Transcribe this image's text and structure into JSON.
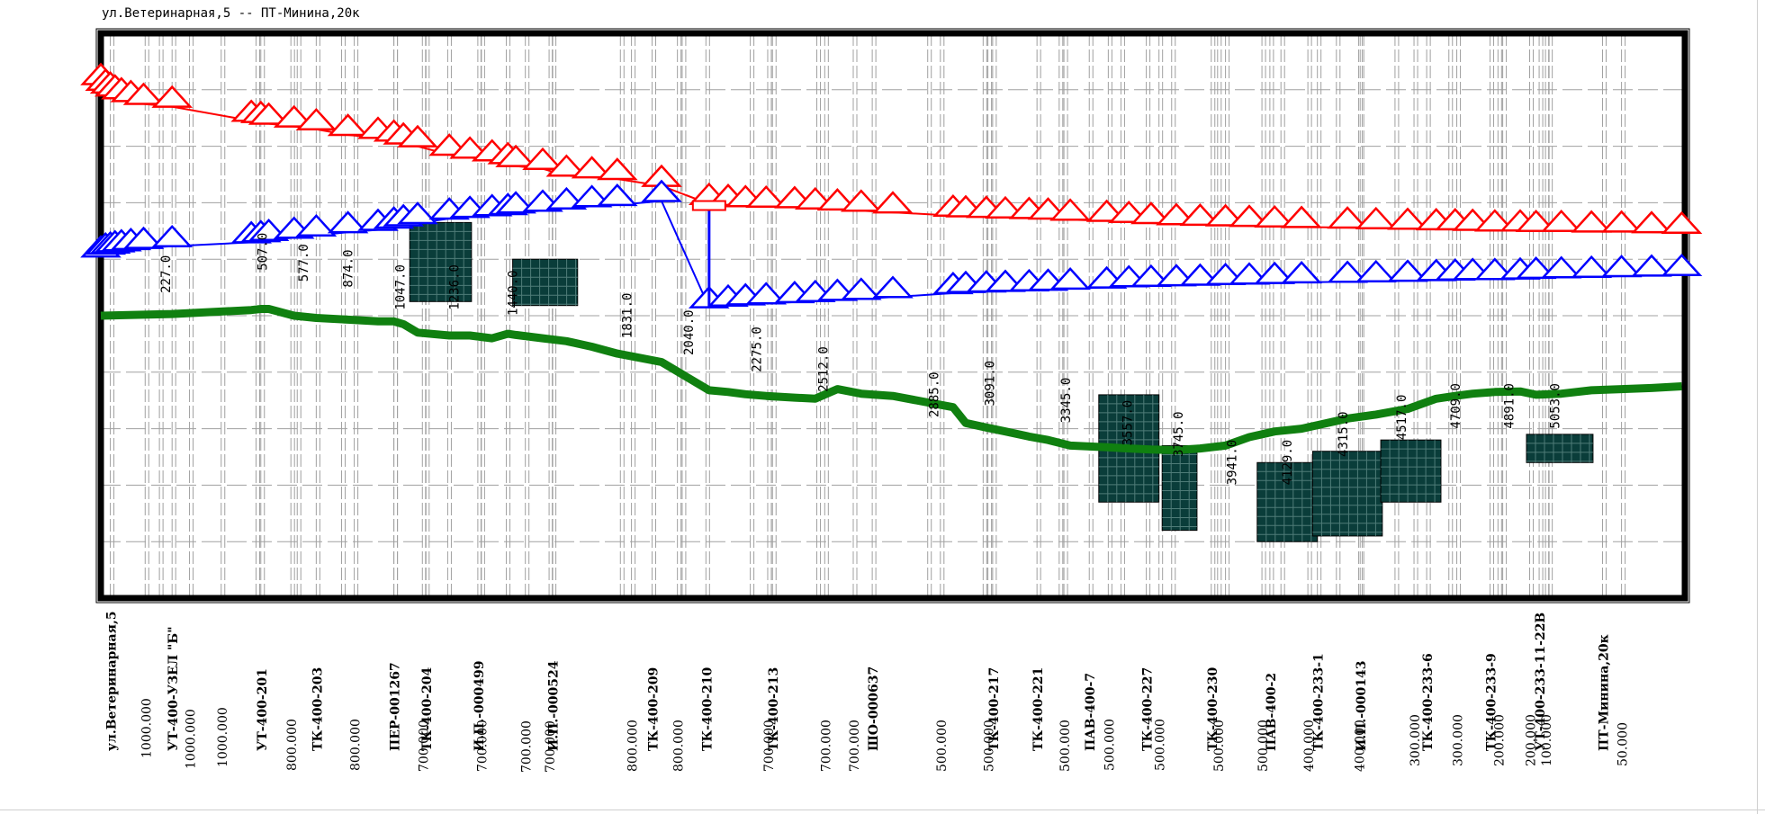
{
  "title": "ул.Ветеринарная,5 -- ПТ-Минина,20к",
  "colors": {
    "supply": "#ff0000",
    "return": "#0000ff",
    "ground": "#108010",
    "chamber": "#0a3d3a",
    "frame": "#000000",
    "grid": "#a0a0a0"
  },
  "chart_data": {
    "type": "line",
    "title": "ул.Ветеринарная,5 -- ПТ-Минина,20к",
    "xlabel": "",
    "ylabel": "",
    "xlim": [
      0,
      1000
    ],
    "ylim": [
      0,
      100
    ],
    "grid": true,
    "series": [
      {
        "name": "",
        "role": "supply",
        "color": "#ff0000",
        "x": [
          0,
          3,
          6,
          9,
          13,
          19,
          27,
          45,
          95,
          101,
          106,
          122,
          136,
          156,
          175,
          185,
          191,
          200,
          220,
          233,
          247,
          257,
          262,
          279,
          294,
          310,
          326,
          354,
          384,
          396,
          407,
          420,
          438,
          451,
          465,
          480,
          500,
          538,
          546,
          559,
          571,
          586,
          598,
          612,
          635,
          649,
          663,
          679,
          694,
          710,
          725,
          741,
          758,
          787,
          805,
          825,
          843,
          855,
          866,
          880,
          896,
          906,
          922,
          941,
          960,
          979,
          998
        ],
        "y": [
          91,
          90,
          89.5,
          89,
          88.5,
          88,
          87.5,
          87,
          84.5,
          84.3,
          84,
          83.5,
          83,
          82,
          81.5,
          81,
          80.5,
          80,
          78.5,
          78,
          77.5,
          77,
          76.5,
          76,
          74.8,
          74.5,
          74.2,
          73,
          69.8,
          69.6,
          69.4,
          69.3,
          69.2,
          69,
          68.8,
          68.6,
          68.3,
          67.7,
          67.6,
          67.5,
          67.4,
          67.3,
          67.2,
          67,
          66.8,
          66.6,
          66.4,
          66.2,
          66.1,
          66,
          65.9,
          65.8,
          65.7,
          65.6,
          65.5,
          65.4,
          65.3,
          65.3,
          65.2,
          65.1,
          65.1,
          65,
          65,
          64.9,
          64.9,
          64.8,
          64.7
        ]
      },
      {
        "name": "",
        "role": "return",
        "color": "#0000ff",
        "x": [
          0,
          3,
          6,
          9,
          13,
          19,
          27,
          45,
          95,
          101,
          106,
          122,
          136,
          156,
          175,
          185,
          191,
          200,
          220,
          233,
          247,
          257,
          262,
          279,
          294,
          310,
          326,
          354,
          384,
          396,
          407,
          420,
          438,
          451,
          465,
          480,
          500,
          538,
          546,
          559,
          571,
          586,
          598,
          612,
          635,
          649,
          663,
          679,
          694,
          710,
          725,
          741,
          758,
          787,
          805,
          825,
          843,
          855,
          866,
          880,
          896,
          906,
          922,
          941,
          960,
          979,
          998
        ],
        "y": [
          60.5,
          61,
          61.2,
          61.4,
          61.6,
          61.8,
          62,
          62.3,
          63,
          63.2,
          63.4,
          63.8,
          64.2,
          64.8,
          65.2,
          65.6,
          66,
          66.4,
          67.2,
          67.5,
          67.8,
          68,
          68.3,
          68.6,
          69,
          69.4,
          69.6,
          70.3,
          51.5,
          51.8,
          52,
          52.2,
          52.4,
          52.6,
          52.8,
          53,
          53.3,
          54,
          54.2,
          54.3,
          54.4,
          54.5,
          54.6,
          54.8,
          55,
          55.2,
          55.3,
          55.4,
          55.5,
          55.6,
          55.7,
          55.8,
          55.9,
          56,
          56.1,
          56.2,
          56.3,
          56.4,
          56.5,
          56.5,
          56.6,
          56.7,
          56.8,
          56.9,
          57,
          57.1,
          57.2
        ]
      },
      {
        "name": "",
        "role": "ground",
        "color": "#108010",
        "x": [
          0,
          45,
          95,
          101,
          106,
          122,
          136,
          156,
          175,
          185,
          191,
          200,
          220,
          233,
          247,
          257,
          262,
          279,
          294,
          310,
          326,
          354,
          384,
          396,
          407,
          420,
          438,
          451,
          465,
          480,
          500,
          538,
          546,
          559,
          571,
          586,
          598,
          612,
          635,
          649,
          663,
          679,
          694,
          710,
          725,
          741,
          758,
          787,
          805,
          825,
          843,
          855,
          866,
          880,
          896,
          906,
          922,
          941,
          960,
          979,
          998
        ],
        "y": [
          50,
          50.3,
          51,
          51.2,
          51.2,
          50,
          49.6,
          49.3,
          49,
          49,
          48.5,
          47,
          46.5,
          46.5,
          46,
          46.8,
          46.6,
          46,
          45.5,
          44.5,
          43.3,
          41.8,
          36.8,
          36.5,
          36.1,
          35.8,
          35.5,
          35.3,
          37,
          36.2,
          35.8,
          33.8,
          31,
          30.2,
          29.5,
          28.6,
          28,
          27,
          26.7,
          26.5,
          26.3,
          26.2,
          26.5,
          27,
          28.5,
          29.5,
          30,
          31.8,
          32.5,
          33.5,
          35.3,
          35.8,
          36.2,
          36.5,
          36.6,
          36,
          36.2,
          36.8,
          37,
          37.2,
          37.5
        ]
      }
    ],
    "annotations": [
      "227.0",
      "507.0",
      "577.0",
      "874.0",
      "1047.0",
      "1236.0",
      "1440.0",
      "1831.0",
      "2040.0",
      "2275.0",
      "2512.0",
      "2885.0",
      "3091.0",
      "3345.0",
      "3557.0",
      "3745.0",
      "3941.0",
      "4129.0",
      "4315.0",
      "4517.0",
      "4709.0",
      "4891.0",
      "5053.0"
    ],
    "annotation_x": [
      37,
      98,
      124,
      152,
      185,
      219,
      256,
      328,
      367,
      410,
      452,
      522,
      557,
      605,
      644,
      676,
      710,
      745,
      780,
      817,
      851,
      885,
      914
    ],
    "annotation_y": [
      54,
      58,
      56,
      55,
      51,
      51,
      50,
      46,
      43,
      40,
      36.5,
      32,
      34,
      31,
      27,
      25,
      20,
      20,
      25,
      28,
      30,
      30,
      30
    ],
    "chambers": [
      {
        "x": 195,
        "y_top": 66.5,
        "y_bottom": 52.5,
        "w": 39
      },
      {
        "x": 260,
        "y_top": 60,
        "y_bottom": 51.8,
        "w": 41
      },
      {
        "x": 630,
        "y_top": 36,
        "y_bottom": 17,
        "w": 38
      },
      {
        "x": 670,
        "y_top": 27,
        "y_bottom": 12,
        "w": 22
      },
      {
        "x": 730,
        "y_top": 24,
        "y_bottom": 10,
        "w": 38
      },
      {
        "x": 765,
        "y_top": 26,
        "y_bottom": 11,
        "w": 44
      },
      {
        "x": 808,
        "y_top": 28,
        "y_bottom": 17,
        "w": 38
      },
      {
        "x": 900,
        "y_top": 29,
        "y_bottom": 24,
        "w": 42
      }
    ],
    "nodes": [
      "ул.Ветеринарная,5",
      "УТ-400-УЗЕЛ \"Б\"",
      "УТ-400-201",
      "ТК-400-203",
      "ПЕР-001267",
      "ТК-400-204",
      "И.П.-000499",
      "И.П.-000524",
      "ТК-400-209",
      "ТК-400-210",
      "ТК-400-213",
      "ШО-000637",
      "ТК-400-217",
      "ТК-400-221",
      "ПАВ-400-7",
      "ТК-400-227",
      "ТК-400-230",
      "ПАВ-400-2",
      "ТК-400-233-1",
      "И.П.-000143",
      "ТК-400-233-6",
      "ТК-400-233-9",
      "УТ-400-233-11-22В",
      "ПТ-Минина,20к"
    ],
    "node_x": [
      6,
      45,
      101,
      136,
      185,
      205,
      238,
      285,
      348,
      382,
      424,
      487,
      563,
      591,
      624,
      660,
      701,
      738,
      768,
      795,
      837,
      877,
      908,
      948
    ],
    "node_x2": [
      null,
      null,
      null,
      null,
      null,
      null,
      null,
      null,
      null,
      null,
      null,
      null,
      null,
      null,
      null,
      null,
      null,
      null,
      null,
      null,
      null,
      null,
      null,
      952
    ],
    "lengths": [
      "1000.000",
      "1000.000",
      "1000.000",
      "800.000",
      "800.000",
      "700.000",
      "700.000",
      "700.000",
      "700.000",
      "800.000",
      "800.000",
      "700.000",
      "700.000",
      "700.000",
      "500.000",
      "500.000",
      "500.000",
      "500.000",
      "500.000",
      "500.000",
      "500.000",
      "400.000",
      "400.000",
      "300.000",
      "300.000",
      "200.000",
      "200.000",
      "100.000",
      "50.000"
    ],
    "lengths_x": [
      28,
      56,
      76,
      120,
      160,
      203,
      240,
      268,
      283,
      335,
      364,
      421,
      457,
      475,
      530,
      560,
      608,
      636,
      668,
      705,
      733,
      762,
      794,
      829,
      856,
      882,
      902,
      912,
      960
    ],
    "length_tops": [
      683,
      695,
      693,
      697,
      697,
      698,
      698,
      699,
      699,
      698,
      698,
      698,
      698,
      698,
      698,
      698,
      698,
      697,
      697,
      698,
      698,
      698,
      698,
      692,
      692,
      692,
      692,
      692,
      692
    ]
  }
}
